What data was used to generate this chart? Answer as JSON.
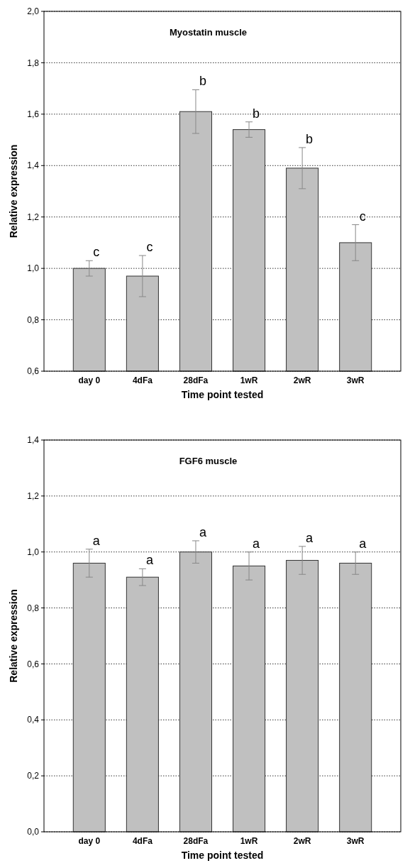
{
  "chart_data": [
    {
      "type": "bar",
      "title": "Myostatin muscle",
      "xlabel": "Time point tested",
      "ylabel": "Relative expression",
      "categories": [
        "day 0",
        "4dFa",
        "28dFa",
        "1wR",
        "2wR",
        "3wR"
      ],
      "values": [
        1.0,
        0.97,
        1.61,
        1.54,
        1.39,
        1.1
      ],
      "errors": [
        0.03,
        0.08,
        0.085,
        0.03,
        0.08,
        0.07
      ],
      "color": "#c0c0c0",
      "ylim": [
        0.6,
        2.0
      ],
      "yticks": [
        {
          "value": 0.6,
          "label": "0,6"
        },
        {
          "value": 0.8,
          "label": "0,8"
        },
        {
          "value": 1.0,
          "label": "1,0"
        },
        {
          "value": 1.2,
          "label": "1,2"
        },
        {
          "value": 1.4,
          "label": "1,4"
        },
        {
          "value": 1.6,
          "label": "1,6"
        },
        {
          "value": 1.8,
          "label": "1,8"
        },
        {
          "value": 2.0,
          "label": "2,0"
        }
      ],
      "grid": "y",
      "annotations": [
        {
          "text": "c",
          "x": "day 0",
          "y": 1.03
        },
        {
          "text": "c",
          "x": "4dFa",
          "y": 1.05
        },
        {
          "text": "b",
          "x": "28dFa",
          "y": 1.695
        },
        {
          "text": "b",
          "x": "1wR",
          "y": 1.57
        },
        {
          "text": "b",
          "x": "2wR",
          "y": 1.47
        },
        {
          "text": "c",
          "x": "3wR",
          "y": 1.17
        }
      ]
    },
    {
      "type": "bar",
      "title": "FGF6  muscle",
      "xlabel": "Time point tested",
      "ylabel": "Relative expression",
      "categories": [
        "day 0",
        "4dFa",
        "28dFa",
        "1wR",
        "2wR",
        "3wR"
      ],
      "values": [
        0.96,
        0.91,
        1.0,
        0.95,
        0.97,
        0.96
      ],
      "errors": [
        0.05,
        0.03,
        0.04,
        0.05,
        0.05,
        0.04
      ],
      "color": "#c0c0c0",
      "ylim": [
        0.0,
        1.4
      ],
      "yticks": [
        {
          "value": 0.0,
          "label": "0,0"
        },
        {
          "value": 0.2,
          "label": "0,2"
        },
        {
          "value": 0.4,
          "label": "0,4"
        },
        {
          "value": 0.6,
          "label": "0,6"
        },
        {
          "value": 0.8,
          "label": "0,8"
        },
        {
          "value": 1.0,
          "label": "1,0"
        },
        {
          "value": 1.2,
          "label": "1,2"
        },
        {
          "value": 1.4,
          "label": "1,4"
        }
      ],
      "grid": "y",
      "annotations": [
        {
          "text": "a",
          "x": "day 0",
          "y": 1.01
        },
        {
          "text": "a",
          "x": "4dFa",
          "y": 0.94
        },
        {
          "text": "a",
          "x": "28dFa",
          "y": 1.04
        },
        {
          "text": "a",
          "x": "1wR",
          "y": 1.0
        },
        {
          "text": "a",
          "x": "2wR",
          "y": 1.02
        },
        {
          "text": "a",
          "x": "3wR",
          "y": 1.0
        }
      ]
    }
  ]
}
